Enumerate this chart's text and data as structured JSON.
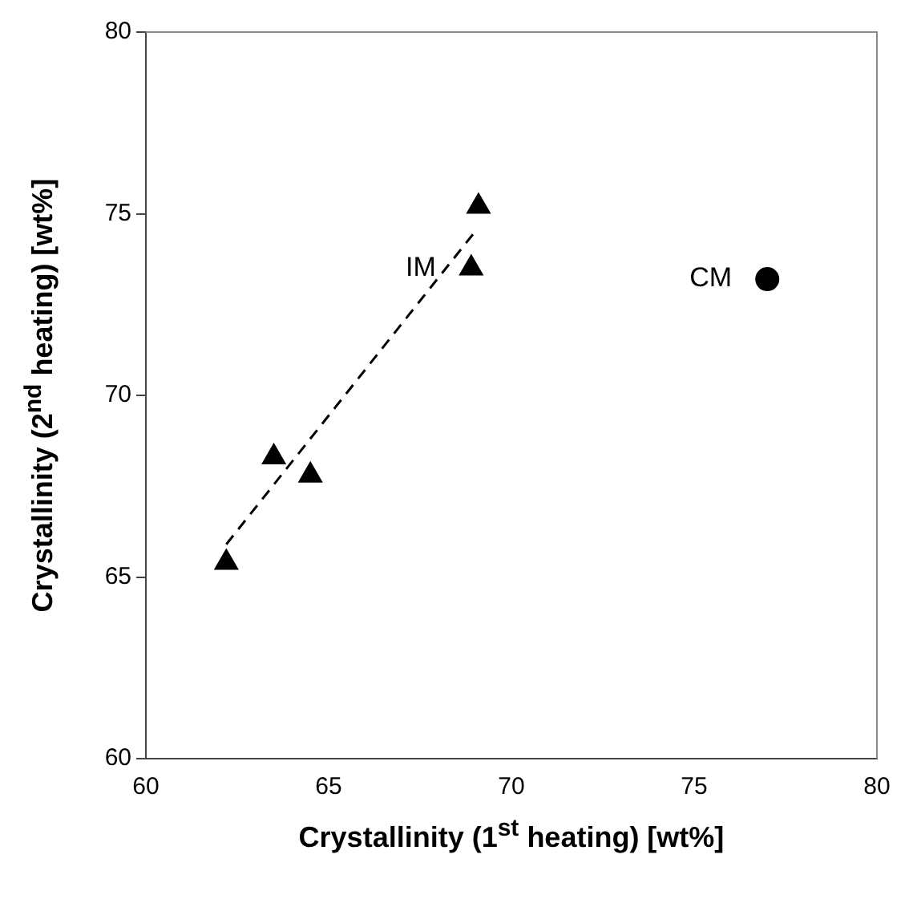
{
  "chart_data": {
    "type": "scatter",
    "xlabel": "Crystallinity (1$^{st}$ heating) [wt%]",
    "ylabel": "Crystallinity (2$^{nd}$ heating) [wt%]",
    "xlim": [
      60,
      80
    ],
    "xticks": [
      60,
      65,
      70,
      75,
      80
    ],
    "ylim": [
      60,
      80
    ],
    "yticks": [
      60,
      65,
      70,
      75,
      80
    ],
    "grid": false,
    "legend": false,
    "series": [
      {
        "name": "IM",
        "color": "#000000",
        "marker": "triangle",
        "x": [
          62.2,
          63.5,
          64.5,
          68.9,
          69.1
        ],
        "values": [
          65.4,
          68.3,
          67.8,
          73.5,
          75.2
        ]
      },
      {
        "name": "CM",
        "color": "#000000",
        "marker": "circle",
        "x": [
          77.0
        ],
        "values": [
          73.2
        ]
      },
      {
        "type": "line",
        "color": "#000000",
        "line_style": "dashed",
        "marker": "none",
        "x": [
          62.2,
          69.0
        ],
        "values": [
          65.9,
          74.5
        ]
      }
    ]
  }
}
